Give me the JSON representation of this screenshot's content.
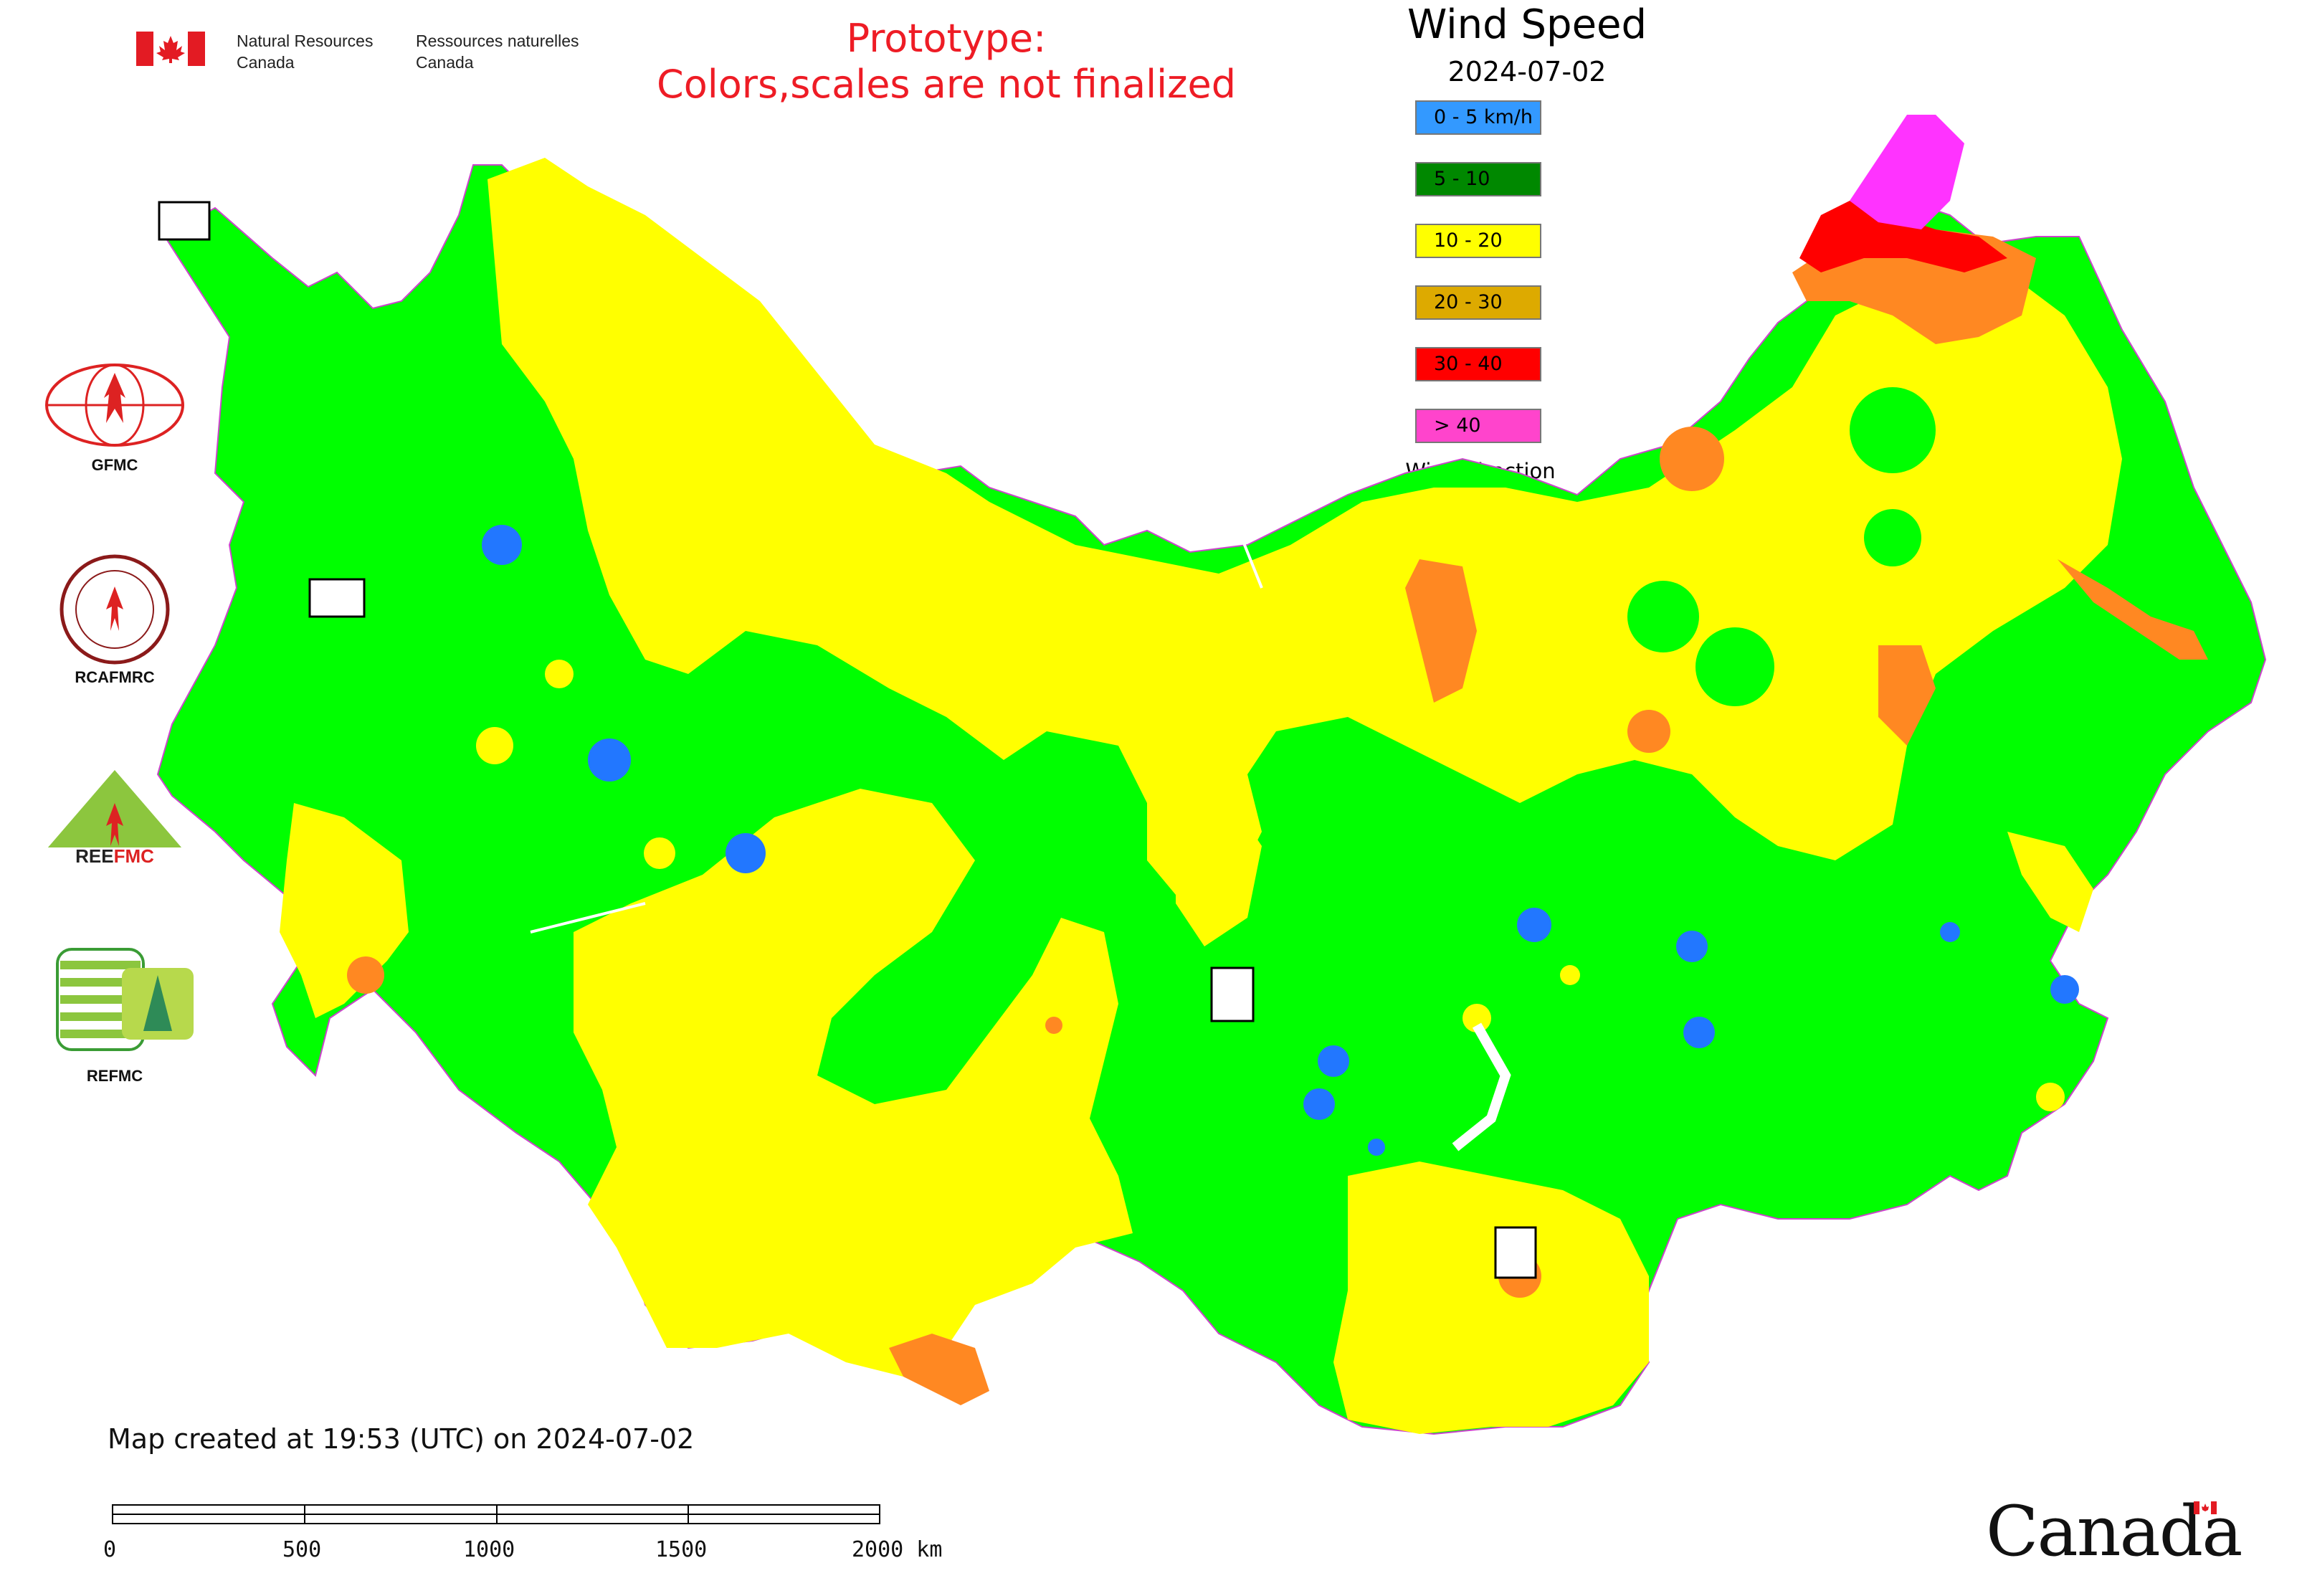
{
  "header": {
    "org_en": "Natural Resources\nCanada",
    "org_fr": "Ressources naturelles\nCanada",
    "prototype_line1": "Prototype:",
    "prototype_line2": "Colors,scales are not finalized",
    "title": "Wind Speed",
    "date": "2024-07-02"
  },
  "legend": {
    "items": [
      {
        "label": "0 - 5 km/h",
        "color": "#3399ff"
      },
      {
        "label": "5 - 10",
        "color": "#008800"
      },
      {
        "label": "10 - 20",
        "color": "#ffff00"
      },
      {
        "label": "20 - 30",
        "color": "#ddaa00"
      },
      {
        "label": "30 - 40",
        "color": "#ff0000"
      },
      {
        "label": "> 40",
        "color": "#ff44cc"
      }
    ],
    "wind_direction_label": "Wind direction"
  },
  "sidebar": {
    "logos": [
      {
        "label": "GFMC",
        "icon": "gfmc-logo"
      },
      {
        "label": "RCAFMRC",
        "icon": "rcafmrc-logo"
      },
      {
        "label": "REEFMC",
        "icon": "reefmc-logo"
      },
      {
        "label": "REFMC",
        "icon": "refmc-logo"
      }
    ]
  },
  "map": {
    "fill_colors": {
      "green": "#00ff00",
      "yellow": "#ffff00",
      "orange": "#ff8822",
      "red": "#ff0000",
      "magenta": "#ff33ff",
      "blue": "#2277ff",
      "border": "#cc44cc"
    }
  },
  "footer": {
    "created": "Map created at 19:53 (UTC) on 2024-07-02",
    "scale_labels": [
      "0",
      "500",
      "1000",
      "1500",
      "2000 km"
    ],
    "wordmark": "Canada"
  }
}
